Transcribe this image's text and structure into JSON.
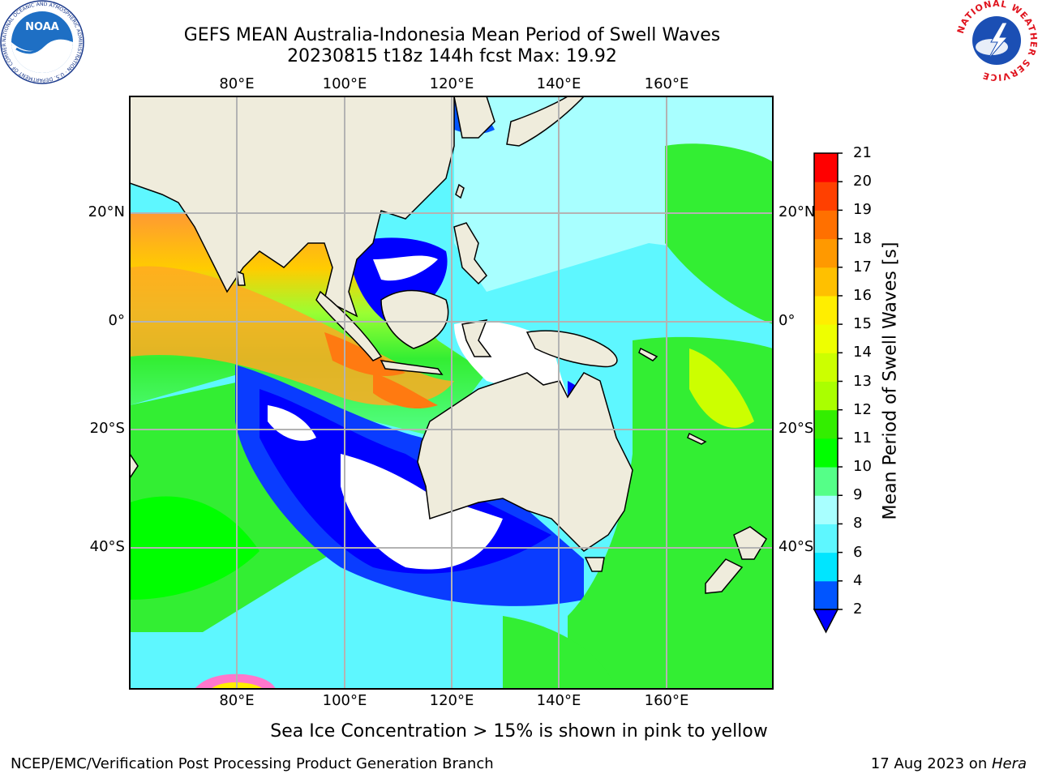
{
  "title": {
    "line1": "GEFS MEAN Australia-Indonesia Mean Period of Swell Waves",
    "line2": "20230815 t18z 144h fcst   Max: 19.92"
  },
  "map": {
    "lon_labels": [
      "80°E",
      "100°E",
      "120°E",
      "140°E",
      "160°E"
    ],
    "lat_labels": [
      "20°N",
      "0°",
      "20°S",
      "40°S"
    ],
    "lon_range": [
      60,
      180
    ],
    "lat_range": [
      -68,
      42
    ],
    "land_color": "#efecdc",
    "grid": true,
    "calm_area_color": "#ffffff"
  },
  "colorbar": {
    "label": "Mean Period of Swell Waves [s]",
    "ticks": [
      "2",
      "4",
      "6",
      "8",
      "9",
      "10",
      "11",
      "12",
      "13",
      "14",
      "15",
      "16",
      "17",
      "18",
      "19",
      "20",
      "21"
    ],
    "colors": [
      "#0055ff",
      "#00e5ff",
      "#5ef7ff",
      "#a8ffff",
      "#55ff88",
      "#00ff00",
      "#33ee00",
      "#aaff00",
      "#ccff00",
      "#eeff00",
      "#ffee00",
      "#ffc000",
      "#ff9900",
      "#ff7000",
      "#ff4000",
      "#ff0000"
    ],
    "extend_below_color": "#0000ff"
  },
  "caption": "Sea Ice Concentration > 15% is shown in pink to yellow",
  "footer": {
    "left": "NCEP/EMC/Verification Post Processing Product Generation Branch",
    "date": "17 Aug 2023 on ",
    "machine": "Hera"
  },
  "logos": {
    "noaa_text": "NOAA",
    "noaa_ring": "NATIONAL OCEANIC AND ATMOSPHERIC ADMINISTRATION · U.S. DEPARTMENT OF COMMERCE ·",
    "nws_ring": "NATIONAL WEATHER SERVICE"
  }
}
